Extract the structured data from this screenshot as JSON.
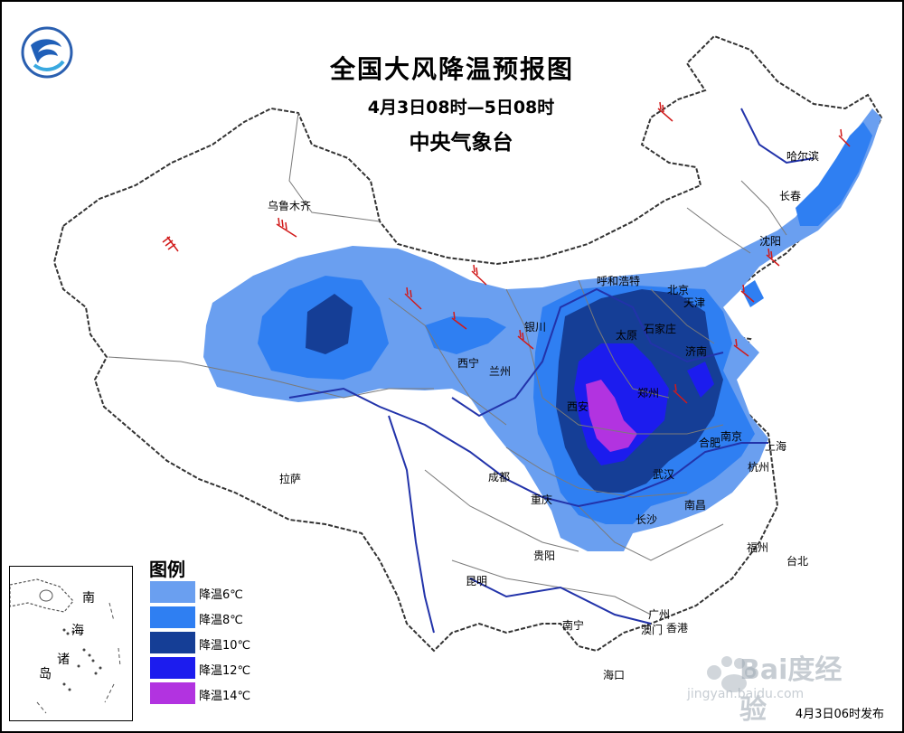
{
  "title": "全国大风降温预报图",
  "period": "4月3日08时—5日08时",
  "agency": "中央气象台",
  "release": "4月3日06时发布",
  "legend": {
    "title": "图例",
    "items": [
      {
        "label": "降温6℃",
        "color": "#6a9ff0"
      },
      {
        "label": "降温8℃",
        "color": "#2f7ff2"
      },
      {
        "label": "降温10℃",
        "color": "#153e96"
      },
      {
        "label": "降温12℃",
        "color": "#1c1cee"
      },
      {
        "label": "降温14℃",
        "color": "#b233e0"
      }
    ]
  },
  "cities": [
    {
      "name": "乌鲁木齐"
    },
    {
      "name": "哈尔滨"
    },
    {
      "name": "长春"
    },
    {
      "name": "沈阳"
    },
    {
      "name": "呼和浩特"
    },
    {
      "name": "北京"
    },
    {
      "name": "天津"
    },
    {
      "name": "石家庄"
    },
    {
      "name": "太原"
    },
    {
      "name": "济南"
    },
    {
      "name": "银川"
    },
    {
      "name": "西宁"
    },
    {
      "name": "兰州"
    },
    {
      "name": "西安"
    },
    {
      "name": "郑州"
    },
    {
      "name": "南京"
    },
    {
      "name": "合肥"
    },
    {
      "name": "上海"
    },
    {
      "name": "杭州"
    },
    {
      "name": "武汉"
    },
    {
      "name": "南昌"
    },
    {
      "name": "长沙"
    },
    {
      "name": "成都"
    },
    {
      "name": "重庆"
    },
    {
      "name": "拉萨"
    },
    {
      "name": "贵阳"
    },
    {
      "name": "昆明"
    },
    {
      "name": "福州"
    },
    {
      "name": "台北"
    },
    {
      "name": "广州"
    },
    {
      "name": "南宁"
    },
    {
      "name": "澳门"
    },
    {
      "name": "香港"
    },
    {
      "name": "海口"
    }
  ],
  "inset": {
    "labels": [
      "南",
      "海",
      "诸",
      "岛"
    ]
  },
  "watermark": {
    "text": "Bai度经验",
    "url": "jingyan.baidu.com"
  }
}
